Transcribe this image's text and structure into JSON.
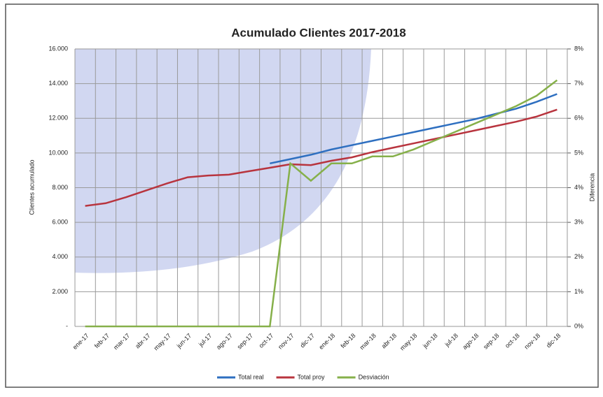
{
  "chart_data": {
    "type": "line",
    "title": "Acumulado Clientes 2017-2018",
    "y_label": "Clientes acumulado",
    "y2_label": "Diferencia",
    "categories": [
      "ene-17",
      "feb-17",
      "mar-17",
      "abr-17",
      "may-17",
      "jun-17",
      "jul-17",
      "ago-17",
      "sep-17",
      "oct-17",
      "nov-17",
      "dic-17",
      "ene-18",
      "feb-18",
      "mar-18",
      "abr-18",
      "may-18",
      "jun-18",
      "jul-18",
      "ago-18",
      "sep-18",
      "oct-18",
      "nov-18",
      "dic-18"
    ],
    "series": [
      {
        "name": "Total real",
        "color": "#2e6fc0",
        "values": [
          null,
          null,
          null,
          null,
          null,
          null,
          null,
          null,
          null,
          9400,
          9650,
          9900,
          10200,
          10450,
          10700,
          10950,
          11200,
          11450,
          11700,
          11950,
          12250,
          12550,
          12950,
          13400
        ]
      },
      {
        "name": "Total proy",
        "color": "#b8343e",
        "values": [
          6950,
          7100,
          7450,
          7850,
          8250,
          8600,
          8700,
          8750,
          8950,
          9150,
          9350,
          9300,
          9550,
          9750,
          10050,
          10300,
          10550,
          10800,
          11050,
          11300,
          11550,
          11800,
          12100,
          12500
        ]
      },
      {
        "name": "Desviación",
        "color": "#86b04a",
        "axis": "y2",
        "values": [
          0,
          0,
          0,
          0,
          0,
          0,
          0,
          0,
          0,
          0,
          4.7,
          4.2,
          4.7,
          4.7,
          4.9,
          4.9,
          5.1,
          5.35,
          5.6,
          5.85,
          6.1,
          6.35,
          6.65,
          7.1
        ]
      }
    ],
    "ylim": [
      0,
      16000
    ],
    "yticks": [
      {
        "value": 0,
        "label": "-"
      },
      {
        "value": 2000,
        "label": "2.000"
      },
      {
        "value": 4000,
        "label": "4.000"
      },
      {
        "value": 6000,
        "label": "6.000"
      },
      {
        "value": 8000,
        "label": "8.000"
      },
      {
        "value": 10000,
        "label": "10.000"
      },
      {
        "value": 12000,
        "label": "12.000"
      },
      {
        "value": 14000,
        "label": "14.000"
      },
      {
        "value": 16000,
        "label": "16.000"
      }
    ],
    "y2lim": [
      0,
      8
    ],
    "y2ticks": [
      {
        "value": 0,
        "label": "0%"
      },
      {
        "value": 1,
        "label": "1%"
      },
      {
        "value": 2,
        "label": "2%"
      },
      {
        "value": 3,
        "label": "3%"
      },
      {
        "value": 4,
        "label": "4%"
      },
      {
        "value": 5,
        "label": "5%"
      },
      {
        "value": 6,
        "label": "6%"
      },
      {
        "value": 7,
        "label": "7%"
      },
      {
        "value": 8,
        "label": "8%"
      }
    ],
    "grid": true,
    "legend": "bottom"
  }
}
